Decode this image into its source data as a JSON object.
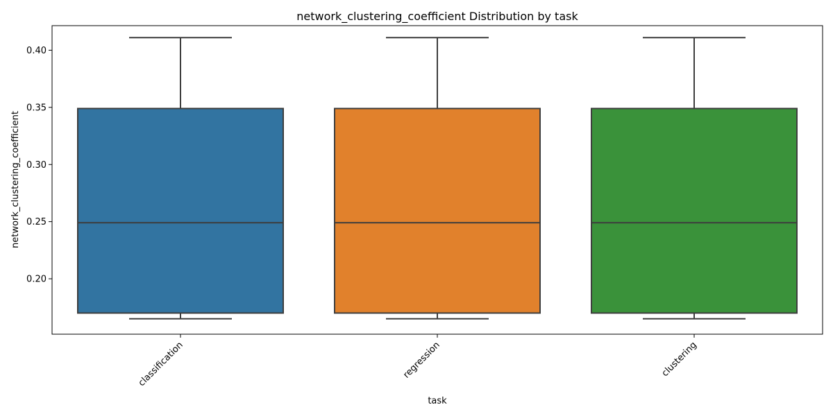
{
  "chart_data": {
    "type": "box",
    "title": "network_clustering_coefficient Distribution by task",
    "xlabel": "task",
    "ylabel": "network_clustering_coefficient",
    "ylim": [
      0.1515,
      0.4215
    ],
    "yticks": [
      0.2,
      0.25,
      0.3,
      0.35,
      0.4
    ],
    "ytick_labels": [
      "0.20",
      "0.25",
      "0.30",
      "0.35",
      "0.40"
    ],
    "grid": false,
    "legend": "none",
    "categories": [
      "classification",
      "regression",
      "clustering"
    ],
    "colors": [
      "#3274a1",
      "#e1812c",
      "#3a923a"
    ],
    "edge_color": "#3d3d3d",
    "boxes": [
      {
        "category": "classification",
        "whisker_low": 0.165,
        "q1": 0.17,
        "median": 0.249,
        "q3": 0.349,
        "whisker_high": 0.411
      },
      {
        "category": "regression",
        "whisker_low": 0.165,
        "q1": 0.17,
        "median": 0.249,
        "q3": 0.349,
        "whisker_high": 0.411
      },
      {
        "category": "clustering",
        "whisker_low": 0.165,
        "q1": 0.17,
        "median": 0.249,
        "q3": 0.349,
        "whisker_high": 0.411
      }
    ]
  }
}
